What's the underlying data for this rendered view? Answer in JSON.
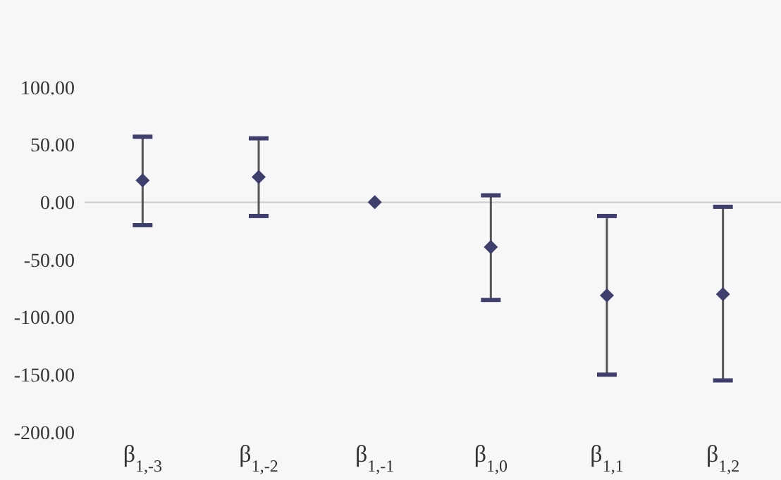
{
  "chart_data": {
    "type": "scatter",
    "categories": [
      "β$_{1,-3}$",
      "β$_{1,-2}$",
      "β$_{1,-1}$",
      "β$_{1,0}$",
      "β$_{1,1}$",
      "β$_{1,2}$"
    ],
    "series": [
      {
        "color": "#3f3f6e",
        "values": [
          19,
          22,
          0,
          -39,
          -81,
          -80
        ],
        "errors": [
          [
            -20,
            57
          ],
          [
            -12,
            55.6
          ],
          null,
          [
            -85,
            6
          ],
          [
            -150,
            -12
          ],
          [
            -155,
            -4
          ]
        ]
      }
    ],
    "ylim": [
      -200,
      100
    ],
    "yticks": [
      {
        "value": 100,
        "label": "100.00"
      },
      {
        "value": 50,
        "label": "50.00"
      },
      {
        "value": 0,
        "label": "0.00"
      },
      {
        "value": -50,
        "label": "-50.00"
      },
      {
        "value": -100,
        "label": "-100.00"
      },
      {
        "value": -150,
        "label": "-150.00"
      },
      {
        "value": -200,
        "label": "-200.00"
      }
    ],
    "ref_lines": [
      {
        "axis": "y",
        "value": 0,
        "color": "#d0d0d0"
      }
    ],
    "marker": "diamond"
  }
}
